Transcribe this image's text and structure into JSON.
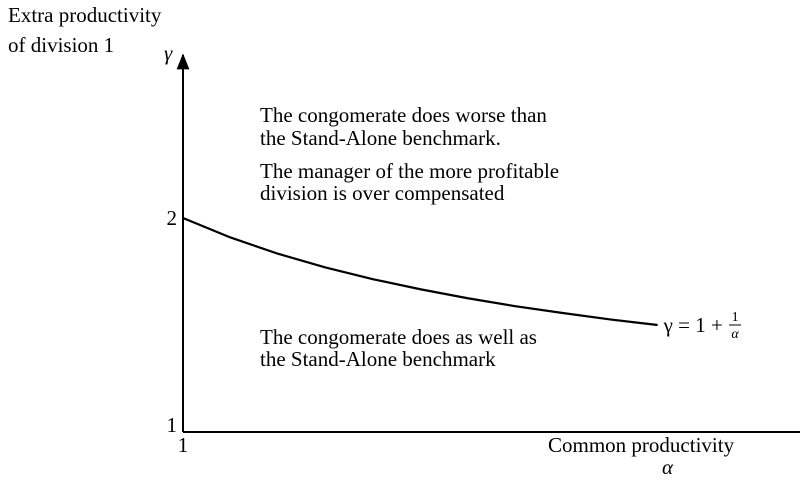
{
  "chart_data": {
    "type": "line",
    "ylabel": [
      "Extra productivity",
      "of division 1"
    ],
    "ysymbol": "γ",
    "xlabel": "Common productivity",
    "xsymbol": "α",
    "x": [
      1,
      1.1,
      1.2,
      1.3,
      1.4,
      1.5,
      1.6,
      1.7,
      1.8,
      1.9,
      2
    ],
    "series": [
      {
        "name": "γ = 1 + ",
        "name_numerator": "1",
        "name_denominator": "α",
        "color": "#000000",
        "values": [
          2,
          1.909,
          1.833,
          1.769,
          1.714,
          1.667,
          1.625,
          1.588,
          1.556,
          1.526,
          1.5
        ]
      }
    ],
    "xlim": [
      1,
      2.3
    ],
    "ylim": [
      1,
      2.75
    ],
    "xticks": [
      1
    ],
    "yticks": [
      1,
      2
    ],
    "grid": false,
    "annotations": [
      "The congomerate does worse than",
      "the Stand-Alone benchmark.",
      "The manager of the more profitable",
      "division is over compensated",
      "The congomerate does as well as",
      "the Stand-Alone benchmark"
    ]
  }
}
